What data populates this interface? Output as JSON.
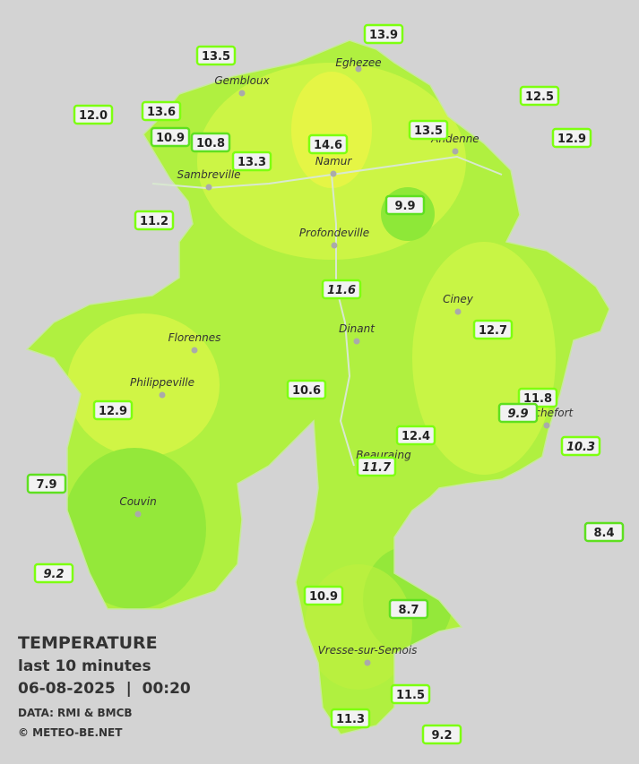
{
  "title": "TEMPERATURE",
  "subtitle": "last 10 minutes",
  "datetime": "06-08-2025  |  00:20",
  "source": "DATA: RMI & BMCB",
  "copyright": "© METEO-BE.NET",
  "towns": [
    "Eghezee",
    "Gembloux",
    "Andenne",
    "Namur",
    "Sambreville",
    "Profondeville",
    "Ciney",
    "Florennes",
    "Dinant",
    "Philippeville",
    "Rochefort",
    "Beauraing",
    "Couvin",
    "Vresse-sur-Semois"
  ],
  "stations": [
    "13.9",
    "13.5",
    "12.5",
    "12.0",
    "13.6",
    "10.9",
    "10.8",
    "13.3",
    "14.6",
    "13.5",
    "12.9",
    "9.9",
    "11.2",
    "11.6",
    "12.7",
    "10.6",
    "11.8",
    "9.9",
    "12.9",
    "12.4",
    "10.3",
    "11.7",
    "7.9",
    "8.4",
    "9.2",
    "10.9",
    "8.7",
    "11.5",
    "11.3",
    "9.2"
  ]
}
